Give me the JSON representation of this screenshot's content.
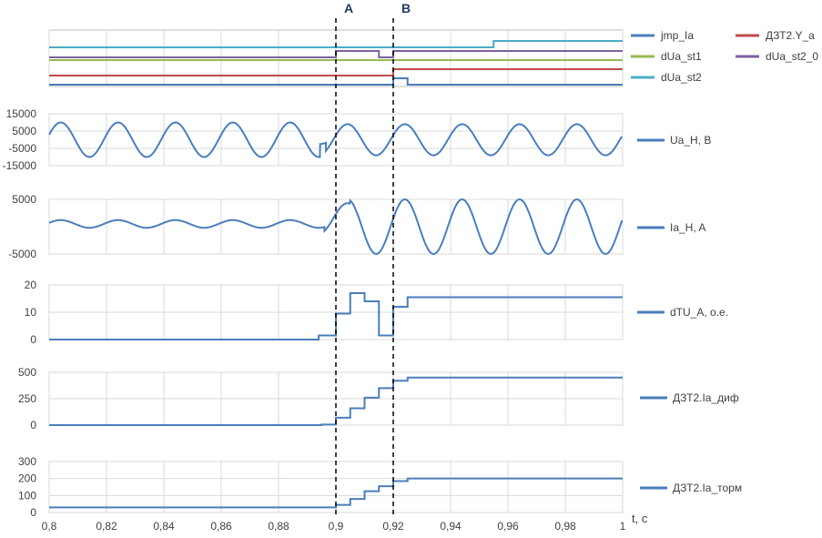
{
  "colors": {
    "blue": "#4a7ebb",
    "red": "#be4b48",
    "green": "#98b954",
    "purple": "#7d60a0",
    "teal": "#4bacc6",
    "grid": "#d9d9d9",
    "axis": "#bfbfbf",
    "marker": "#000000"
  },
  "chart_data": {
    "type": "line",
    "xlabel": "t, с",
    "xlim": [
      0.8,
      1.0
    ],
    "xticks": [
      "0,8",
      "0,82",
      "0,84",
      "0,86",
      "0,88",
      "0,9",
      "0,92",
      "0,94",
      "0,96",
      "0,98",
      "1"
    ],
    "markers": [
      {
        "label": "A",
        "x": 0.9
      },
      {
        "label": "B",
        "x": 0.92
      }
    ],
    "panels": [
      {
        "name": "logic",
        "yticks": [],
        "series": [
          {
            "name": "jmp_Ia",
            "color": "blue",
            "kind": "step",
            "levels": [
              [
                0.8,
                0
              ],
              [
                0.92,
                1
              ],
              [
                0.925,
                0
              ]
            ]
          },
          {
            "name": "ДЗТ2.Y_a",
            "color": "red",
            "kind": "step",
            "levels": [
              [
                0.8,
                0
              ],
              [
                0.92,
                1
              ]
            ]
          },
          {
            "name": "dUa_st1",
            "color": "green",
            "kind": "step",
            "levels": [
              [
                0.8,
                1
              ]
            ]
          },
          {
            "name": "dUa_st2_0",
            "color": "purple",
            "kind": "step",
            "levels": [
              [
                0.8,
                0
              ],
              [
                0.9,
                1
              ],
              [
                0.915,
                0
              ],
              [
                0.92,
                1
              ]
            ]
          },
          {
            "name": "dUa_st2",
            "color": "teal",
            "kind": "step",
            "levels": [
              [
                0.8,
                0
              ],
              [
                0.955,
                1
              ]
            ]
          }
        ]
      },
      {
        "name": "Ua_H, В",
        "yticks": [
          "15000",
          "5000",
          "-5000",
          "-15000"
        ],
        "ylim": [
          -15000,
          15000
        ],
        "series": [
          {
            "name": "Ua_H, В",
            "color": "blue",
            "kind": "sine",
            "freq": 50,
            "segments": [
              [
                0.8,
                0.8945,
                10000,
                0
              ],
              [
                0.8945,
                0.8965,
                2500,
                0
              ],
              [
                0.8965,
                1.0,
                9000,
                0
              ]
            ]
          }
        ]
      },
      {
        "name": "Ia_H, A",
        "yticks": [
          "5000",
          "-5000"
        ],
        "ylim": [
          -5000,
          5000
        ],
        "series": [
          {
            "name": "Ia_H, A",
            "color": "blue",
            "kind": "sine",
            "freq": 50,
            "segments": [
              [
                0.8,
                0.896,
                700,
                500
              ],
              [
                0.896,
                0.905,
                2800,
                1500
              ],
              [
                0.905,
                1.0,
                5000,
                0
              ]
            ]
          }
        ]
      },
      {
        "name": "dTU_A, о.е.",
        "yticks": [
          "20",
          "10",
          "0"
        ],
        "ylim": [
          0,
          20
        ],
        "series": [
          {
            "name": "dTU_A, о.е.",
            "color": "blue",
            "kind": "step",
            "levels": [
              [
                0.8,
                0
              ],
              [
                0.894,
                1.5
              ],
              [
                0.9,
                9.5
              ],
              [
                0.905,
                17
              ],
              [
                0.91,
                14
              ],
              [
                0.915,
                1.5
              ],
              [
                0.92,
                12
              ],
              [
                0.925,
                15.5
              ]
            ]
          }
        ]
      },
      {
        "name": "ДЗТ2.Ia_диф",
        "yticks": [
          "500",
          "250",
          "0"
        ],
        "ylim": [
          0,
          500
        ],
        "series": [
          {
            "name": "ДЗТ2.Ia_диф",
            "color": "blue",
            "kind": "step",
            "levels": [
              [
                0.8,
                0
              ],
              [
                0.895,
                5
              ],
              [
                0.9,
                70
              ],
              [
                0.905,
                160
              ],
              [
                0.91,
                260
              ],
              [
                0.915,
                350
              ],
              [
                0.92,
                420
              ],
              [
                0.925,
                450
              ]
            ]
          }
        ]
      },
      {
        "name": "ДЗТ2.Ia_торм",
        "yticks": [
          "300",
          "200",
          "100",
          "0"
        ],
        "ylim": [
          0,
          300
        ],
        "series": [
          {
            "name": "ДЗТ2.Ia_торм",
            "color": "blue",
            "kind": "step",
            "levels": [
              [
                0.8,
                30
              ],
              [
                0.9,
                45
              ],
              [
                0.905,
                80
              ],
              [
                0.91,
                125
              ],
              [
                0.915,
                155
              ],
              [
                0.92,
                185
              ],
              [
                0.925,
                200
              ]
            ]
          }
        ]
      }
    ]
  }
}
